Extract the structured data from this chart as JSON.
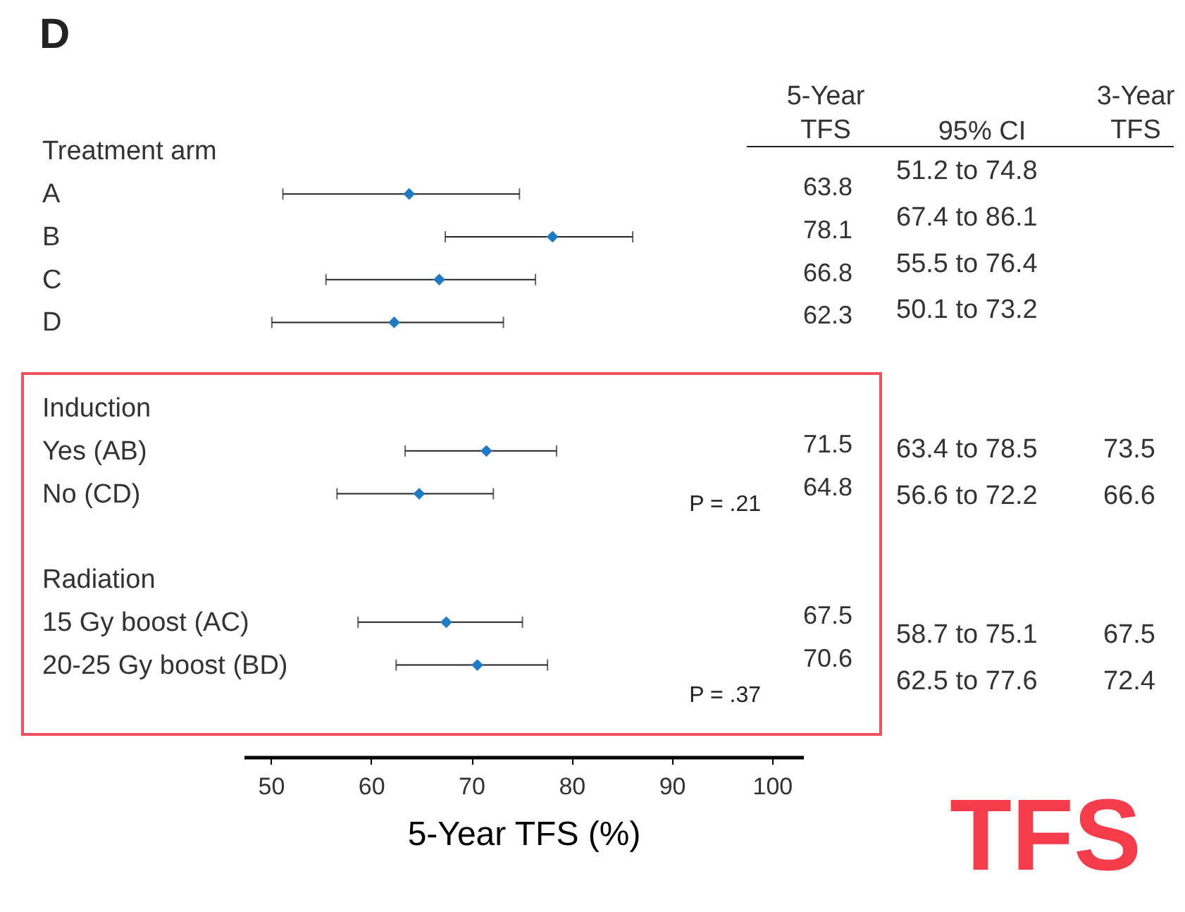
{
  "chart_data": {
    "type": "scatter",
    "orientation": "horizontal",
    "title": "D",
    "xlabel": "5-Year TFS (%)",
    "categories": [
      "Treatment arm",
      "A",
      "B",
      "C",
      "D",
      null,
      "Induction",
      "Yes (AB)",
      "No (CD)",
      null,
      "Radiation",
      "15 Gy boost (AC)",
      "20-25 Gy boost (BD)"
    ],
    "values": [
      null,
      63.8,
      78.1,
      66.8,
      62.3,
      null,
      null,
      71.5,
      64.8,
      null,
      null,
      67.5,
      70.6
    ],
    "errors": [
      null,
      [
        51.2,
        74.8
      ],
      [
        67.4,
        86.1
      ],
      [
        55.5,
        76.4
      ],
      [
        50.1,
        73.2
      ],
      null,
      null,
      [
        63.4,
        78.5
      ],
      [
        56.6,
        72.2
      ],
      null,
      null,
      [
        58.7,
        75.1
      ],
      [
        62.5,
        77.6
      ]
    ],
    "color": "#1f7bc6",
    "marker": "diamond",
    "data_labels": true,
    "xlim": [
      47.3,
      103.1
    ],
    "xticks": [
      50,
      60,
      70,
      80,
      90,
      100
    ],
    "annotations": [
      "5-Year TFS",
      "95% CI",
      "3-Year TFS",
      "51.2 to 74.8",
      "67.4 to 86.1",
      "55.5 to 76.4",
      "50.1 to 73.2",
      "63.4 to 78.5",
      "56.6 to 72.2",
      "58.7 to 75.1",
      "62.5 to 77.6",
      "73.5",
      "66.6",
      "67.5",
      "72.4",
      "P = .21",
      "P = .37",
      "TFS"
    ]
  }
}
